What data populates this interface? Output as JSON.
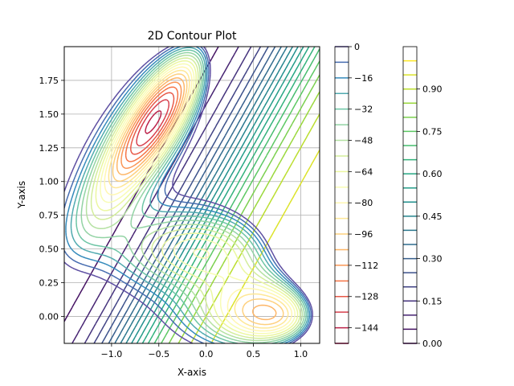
{
  "chart_data": {
    "type": "contour",
    "title": "2D Contour Plot",
    "xlabel": "X-axis",
    "ylabel": "Y-axis",
    "xlim": [
      -1.5,
      1.2
    ],
    "ylim": [
      -0.2,
      2.0
    ],
    "x_ticks": [
      -1.0,
      -0.5,
      0.0,
      0.5,
      1.0
    ],
    "x_tick_labels": [
      "−1.0",
      "−0.5",
      "0.0",
      "0.5",
      "1.0"
    ],
    "y_ticks": [
      0.0,
      0.25,
      0.5,
      0.75,
      1.0,
      1.25,
      1.5,
      1.75
    ],
    "y_tick_labels": [
      "0.00",
      "0.25",
      "0.50",
      "0.75",
      "1.00",
      "1.25",
      "1.50",
      "1.75"
    ],
    "grid": true,
    "series": [
      {
        "colormap": "Spectral_r",
        "function": "Muller-Brown potential",
        "value_range": [
          -152,
          0
        ],
        "levels": [
          -152,
          -144,
          -136,
          -128,
          -120,
          -112,
          -104,
          -96,
          -88,
          -80,
          -72,
          -64,
          -56,
          -48,
          -40,
          -32,
          -24,
          -16,
          -8,
          0
        ],
        "minima": [
          {
            "x": -0.56,
            "y": 1.44,
            "value": -146.7
          },
          {
            "x": 0.62,
            "y": 0.03,
            "value": -108.2
          },
          {
            "x": -0.05,
            "y": 0.47,
            "value": -80.8
          }
        ]
      },
      {
        "colormap": "viridis",
        "function": "sigmoid",
        "value_range": [
          0.0,
          1.0
        ],
        "levels": [
          0.0,
          0.05,
          0.1,
          0.15,
          0.2,
          0.25,
          0.3,
          0.35,
          0.4,
          0.45,
          0.5,
          0.55,
          0.6,
          0.65,
          0.7,
          0.75,
          0.8,
          0.85,
          0.9,
          0.95,
          1.0
        ]
      }
    ],
    "colorbars": [
      {
        "name": "colorbar-1",
        "range": [
          -152,
          0
        ],
        "tick_values": [
          0,
          -16,
          -32,
          -48,
          -64,
          -80,
          -96,
          -112,
          -128,
          -144
        ],
        "tick_labels": [
          "0",
          "−16",
          "−32",
          "−48",
          "−64",
          "−80",
          "−96",
          "−112",
          "−128",
          "−144"
        ]
      },
      {
        "name": "colorbar-2",
        "range": [
          0.0,
          1.05
        ],
        "tick_values": [
          0.0,
          0.15,
          0.3,
          0.45,
          0.6,
          0.75,
          0.9
        ],
        "tick_labels": [
          "0.00",
          "0.15",
          "0.30",
          "0.45",
          "0.60",
          "0.75",
          "0.90"
        ]
      }
    ]
  }
}
